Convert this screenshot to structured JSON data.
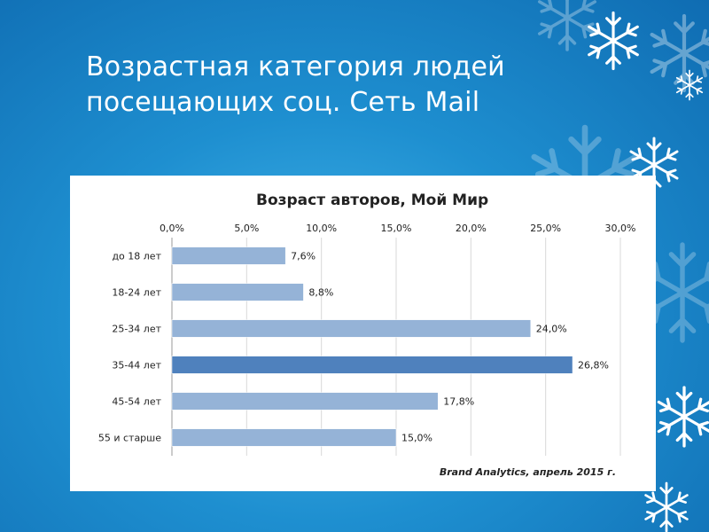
{
  "slide": {
    "title_line1": "Возрастная категория людей",
    "title_line2": "посещающих соц. Сеть Mail"
  },
  "colors": {
    "background": "#1e8fd0",
    "bar": "#95b3d7",
    "bar_highlight": "#4f81bd"
  },
  "chart_data": {
    "type": "bar",
    "orientation": "horizontal",
    "title": "Возраст авторов, Мой Мир",
    "categories": [
      "до 18 лет",
      "18-24 лет",
      "25-34 лет",
      "35-44 лет",
      "45-54 лет",
      "55 и старше"
    ],
    "values": [
      7.6,
      8.8,
      24.0,
      26.8,
      17.8,
      15.0
    ],
    "value_labels": [
      "7,6%",
      "8,8%",
      "24,0%",
      "26,8%",
      "17,8%",
      "15,0%"
    ],
    "highlighted_category": "35-44 лет",
    "xlim": [
      0,
      30
    ],
    "xticks": [
      0,
      5,
      10,
      15,
      20,
      25,
      30
    ],
    "xtick_labels": [
      "0,0%",
      "5,0%",
      "10,0%",
      "15,0%",
      "20,0%",
      "25,0%",
      "30,0%"
    ],
    "axis_position": "top",
    "grid": true,
    "source": "Brand Analytics, апрель 2015 г."
  }
}
